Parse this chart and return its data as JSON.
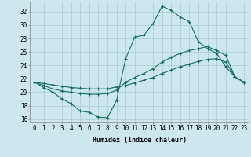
{
  "title": "",
  "xlabel": "Humidex (Indice chaleur)",
  "ylabel": "",
  "background_color": "#cce8ec",
  "grid_color": "#aaccd4",
  "line_color": "#1a6b6b",
  "x_values": [
    0,
    1,
    2,
    3,
    4,
    5,
    6,
    7,
    8,
    9,
    10,
    11,
    12,
    13,
    14,
    15,
    16,
    17,
    18,
    19,
    20,
    21,
    22,
    23
  ],
  "line1": [
    21.5,
    20.7,
    20.0,
    19.0,
    18.3,
    17.2,
    17.0,
    16.3,
    16.2,
    18.8,
    25.0,
    28.2,
    28.5,
    30.2,
    32.8,
    32.2,
    31.2,
    30.5,
    27.5,
    26.5,
    25.8,
    23.8,
    22.3,
    21.5
  ],
  "line2": [
    21.5,
    21.0,
    20.5,
    20.2,
    20.0,
    19.8,
    19.7,
    19.7,
    19.8,
    20.3,
    21.5,
    22.2,
    22.8,
    23.5,
    24.5,
    25.2,
    25.8,
    26.2,
    26.5,
    26.8,
    26.2,
    25.5,
    22.3,
    21.5
  ],
  "line3": [
    21.5,
    21.3,
    21.1,
    20.9,
    20.7,
    20.6,
    20.5,
    20.5,
    20.5,
    20.8,
    21.0,
    21.4,
    21.8,
    22.2,
    22.8,
    23.3,
    23.8,
    24.2,
    24.6,
    24.9,
    25.0,
    24.5,
    22.3,
    21.5
  ],
  "ylim": [
    15.5,
    33.5
  ],
  "xlim": [
    -0.5,
    23.5
  ],
  "yticks": [
    16,
    18,
    20,
    22,
    24,
    26,
    28,
    30,
    32
  ],
  "xticks": [
    0,
    1,
    2,
    3,
    4,
    5,
    6,
    7,
    8,
    9,
    10,
    11,
    12,
    13,
    14,
    15,
    16,
    17,
    18,
    19,
    20,
    21,
    22,
    23
  ],
  "xlabel_fontsize": 6,
  "tick_fontsize": 5.5
}
